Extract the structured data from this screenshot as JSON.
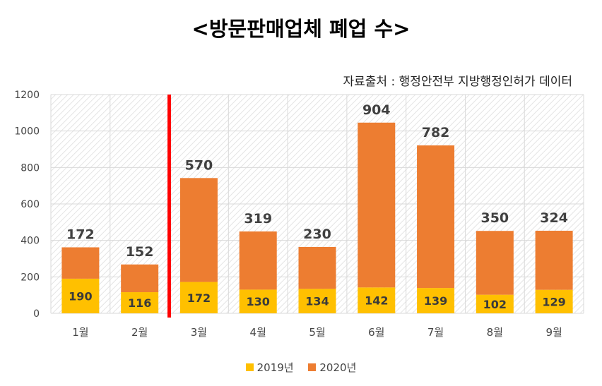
{
  "title": "<방문판매업체 폐업 수>",
  "source": "자료출처 : 행정안전부 지방행정인허가 데이터",
  "colors": {
    "s2019": "#FFC000",
    "s2020": "#ED7D31",
    "divider": "#FF0000",
    "grid": "#D9D9D9"
  },
  "chart_data": {
    "type": "bar",
    "stacked": true,
    "categories": [
      "1월",
      "2월",
      "3월",
      "4월",
      "5월",
      "6월",
      "7월",
      "8월",
      "9월"
    ],
    "series": [
      {
        "name": "2019년",
        "values": [
          190,
          116,
          172,
          130,
          134,
          142,
          139,
          102,
          129
        ]
      },
      {
        "name": "2020년",
        "values": [
          172,
          152,
          570,
          319,
          230,
          904,
          782,
          350,
          324
        ]
      }
    ],
    "ylim": [
      0,
      1200
    ],
    "yticks": [
      0,
      200,
      400,
      600,
      800,
      1000,
      1200
    ],
    "grid": true,
    "legend": "bottom",
    "divider_after_category": "2월"
  }
}
